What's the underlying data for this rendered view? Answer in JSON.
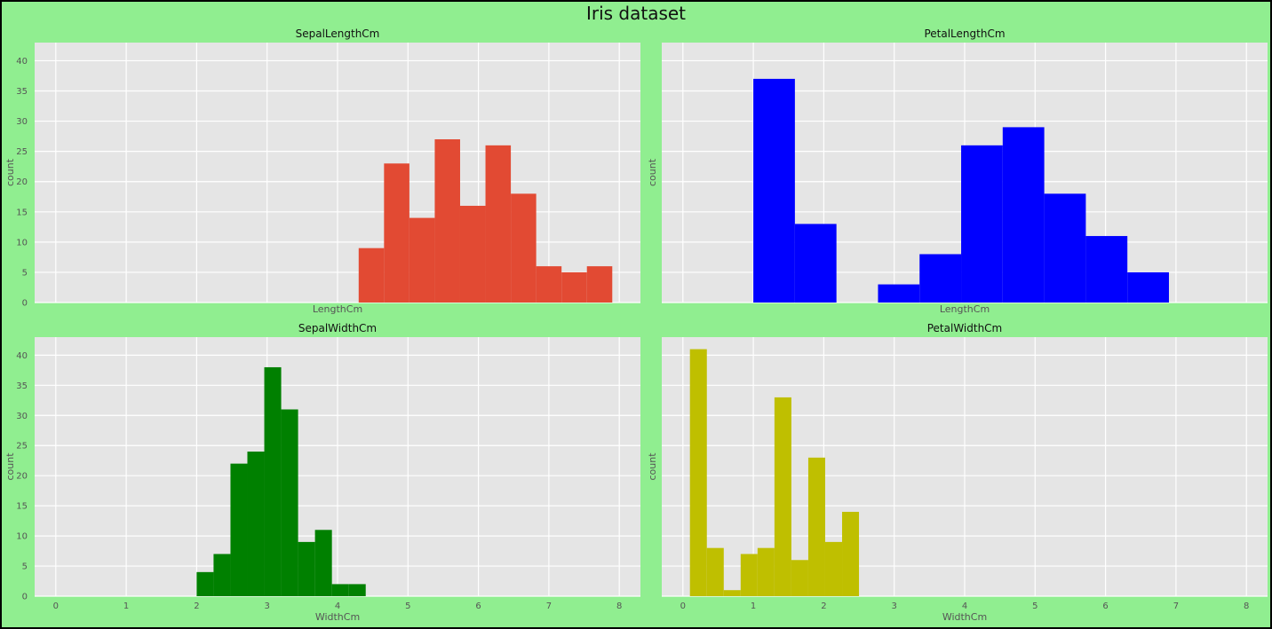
{
  "figure": {
    "title": "Iris dataset",
    "background": "#90ee90",
    "axes_background": "#e5e5e5",
    "grid_color": "#ffffff"
  },
  "chart_data": [
    {
      "type": "bar",
      "subtype": "histogram",
      "title": "SepalLengthCm",
      "xlabel": "LengthCm",
      "ylabel": "count",
      "color": "#e24a33",
      "xlim": [
        -0.3,
        8.3
      ],
      "ylim": [
        0,
        43
      ],
      "xticks": [
        0,
        1,
        2,
        3,
        4,
        5,
        6,
        7,
        8
      ],
      "yticks": [
        0,
        5,
        10,
        15,
        20,
        25,
        30,
        35,
        40
      ],
      "show_xticklabels": false,
      "show_yticklabels": true,
      "grid": true,
      "bins": [
        [
          4.3,
          4.66
        ],
        [
          4.66,
          5.02
        ],
        [
          5.02,
          5.38
        ],
        [
          5.38,
          5.74
        ],
        [
          5.74,
          6.1
        ],
        [
          6.1,
          6.46
        ],
        [
          6.46,
          6.82
        ],
        [
          6.82,
          7.18
        ],
        [
          7.18,
          7.54
        ],
        [
          7.54,
          7.9
        ]
      ],
      "counts": [
        9,
        23,
        14,
        27,
        16,
        26,
        18,
        6,
        5,
        6
      ]
    },
    {
      "type": "bar",
      "subtype": "histogram",
      "title": "PetalLengthCm",
      "xlabel": "LengthCm",
      "ylabel": "count",
      "color": "#0000ff",
      "xlim": [
        -0.3,
        8.3
      ],
      "ylim": [
        0,
        43
      ],
      "xticks": [
        0,
        1,
        2,
        3,
        4,
        5,
        6,
        7,
        8
      ],
      "yticks": [
        0,
        5,
        10,
        15,
        20,
        25,
        30,
        35,
        40
      ],
      "show_xticklabels": false,
      "show_yticklabels": false,
      "grid": true,
      "bins": [
        [
          1.0,
          1.59
        ],
        [
          1.59,
          2.18
        ],
        [
          2.18,
          2.77
        ],
        [
          2.77,
          3.36
        ],
        [
          3.36,
          3.95
        ],
        [
          3.95,
          4.54
        ],
        [
          4.54,
          5.13
        ],
        [
          5.13,
          5.72
        ],
        [
          5.72,
          6.31
        ],
        [
          6.31,
          6.9
        ]
      ],
      "counts": [
        37,
        13,
        0,
        3,
        8,
        26,
        29,
        18,
        11,
        5
      ]
    },
    {
      "type": "bar",
      "subtype": "histogram",
      "title": "SepalWidthCm",
      "xlabel": "WidthCm",
      "ylabel": "count",
      "color": "#008000",
      "xlim": [
        -0.3,
        8.3
      ],
      "ylim": [
        0,
        43
      ],
      "xticks": [
        0,
        1,
        2,
        3,
        4,
        5,
        6,
        7,
        8
      ],
      "yticks": [
        0,
        5,
        10,
        15,
        20,
        25,
        30,
        35,
        40
      ],
      "show_xticklabels": true,
      "show_yticklabels": true,
      "grid": true,
      "bins": [
        [
          2.0,
          2.24
        ],
        [
          2.24,
          2.48
        ],
        [
          2.48,
          2.72
        ],
        [
          2.72,
          2.96
        ],
        [
          2.96,
          3.2
        ],
        [
          3.2,
          3.44
        ],
        [
          3.44,
          3.68
        ],
        [
          3.68,
          3.92
        ],
        [
          3.92,
          4.16
        ],
        [
          4.16,
          4.4
        ]
      ],
      "counts": [
        4,
        7,
        22,
        24,
        38,
        31,
        9,
        11,
        2,
        2
      ]
    },
    {
      "type": "bar",
      "subtype": "histogram",
      "title": "PetalWidthCm",
      "xlabel": "WidthCm",
      "ylabel": "count",
      "color": "#bfbf00",
      "xlim": [
        -0.3,
        8.3
      ],
      "ylim": [
        0,
        43
      ],
      "xticks": [
        0,
        1,
        2,
        3,
        4,
        5,
        6,
        7,
        8
      ],
      "yticks": [
        0,
        5,
        10,
        15,
        20,
        25,
        30,
        35,
        40
      ],
      "show_xticklabels": true,
      "show_yticklabels": false,
      "grid": true,
      "bins": [
        [
          0.1,
          0.34
        ],
        [
          0.34,
          0.58
        ],
        [
          0.58,
          0.82
        ],
        [
          0.82,
          1.06
        ],
        [
          1.06,
          1.3
        ],
        [
          1.3,
          1.54
        ],
        [
          1.54,
          1.78
        ],
        [
          1.78,
          2.02
        ],
        [
          2.02,
          2.26
        ],
        [
          2.26,
          2.5
        ]
      ],
      "counts": [
        41,
        8,
        1,
        7,
        8,
        33,
        6,
        23,
        9,
        14
      ]
    }
  ]
}
